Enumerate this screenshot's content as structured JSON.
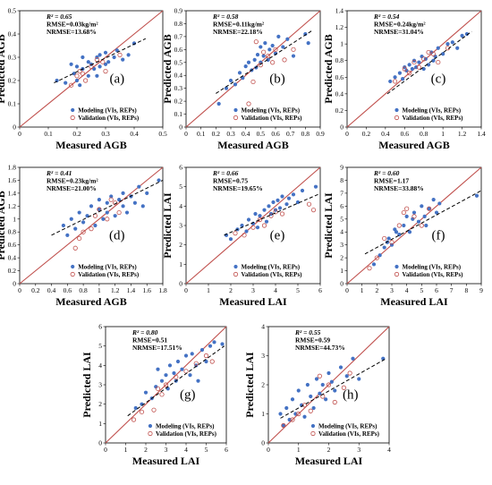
{
  "colors": {
    "modeling": "#4472c4",
    "validation": "#c0504d",
    "one_to_one": "#c0504d",
    "fit": "#000000"
  },
  "chart_data": [
    {
      "type": "scatter",
      "label": "(a)",
      "xlabel": "Measured AGB",
      "ylabel": "Predicted AGB",
      "xlim": [
        0,
        0.5
      ],
      "ylim": [
        0,
        0.5
      ],
      "xticks": [
        "0",
        "0.1",
        "0.2",
        "0.3",
        "0.4",
        "0.5"
      ],
      "yticks": [
        "0",
        "0.1",
        "0.2",
        "0.3",
        "0.4",
        "0.5"
      ],
      "stats": [
        "R² = 0.65",
        "RMSE=0.03kg/m²",
        "NRMSE=13.68%"
      ],
      "legend": [
        "Modeling (VIs, REPs)",
        "Validation (VIs, REPs)"
      ],
      "series": [
        {
          "name": "Modeling (VIs, REPs)",
          "x": [
            0.13,
            0.16,
            0.18,
            0.2,
            0.2,
            0.22,
            0.22,
            0.24,
            0.24,
            0.25,
            0.26,
            0.27,
            0.27,
            0.28,
            0.28,
            0.3,
            0.3,
            0.31,
            0.33,
            0.34,
            0.36,
            0.38,
            0.4,
            0.21,
            0.19
          ],
          "y": [
            0.2,
            0.19,
            0.27,
            0.2,
            0.26,
            0.25,
            0.3,
            0.22,
            0.28,
            0.27,
            0.25,
            0.3,
            0.22,
            0.31,
            0.26,
            0.27,
            0.32,
            0.28,
            0.3,
            0.33,
            0.29,
            0.31,
            0.36,
            0.18,
            0.23
          ]
        },
        {
          "name": "Validation (VIs, REPs)",
          "x": [
            0.18,
            0.2,
            0.22,
            0.25,
            0.27,
            0.29,
            0.3,
            0.35,
            0.23,
            0.21
          ],
          "y": [
            0.18,
            0.22,
            0.23,
            0.26,
            0.29,
            0.28,
            0.24,
            0.31,
            0.2,
            0.24
          ]
        }
      ],
      "fit": [
        [
          0.12,
          0.19
        ],
        [
          0.44,
          0.38
        ]
      ]
    },
    {
      "type": "scatter",
      "label": "(b)",
      "xlabel": "Measured AGB",
      "ylabel": "Predicted AGB",
      "xlim": [
        0,
        0.9
      ],
      "ylim": [
        0,
        0.9
      ],
      "xticks": [
        "0",
        "0.1",
        "0.2",
        "0.3",
        "0.4",
        "0.5",
        "0.6",
        "0.7",
        "0.8",
        "0.9"
      ],
      "yticks": [
        "0",
        "0.1",
        "0.2",
        "0.3",
        "0.4",
        "0.5",
        "0.6",
        "0.7",
        "0.8",
        "0.9"
      ],
      "stats": [
        "R² = 0.58",
        "RMSE=0.11kg/m²",
        "NRMSE=22.18%"
      ],
      "legend": [
        "Modeling (VIs, REPs)",
        "Validation (VIs, REPs)"
      ],
      "series": [
        {
          "name": "Modeling (VIs, REPs)",
          "x": [
            0.22,
            0.27,
            0.3,
            0.33,
            0.36,
            0.38,
            0.4,
            0.42,
            0.44,
            0.46,
            0.47,
            0.48,
            0.5,
            0.5,
            0.52,
            0.53,
            0.55,
            0.56,
            0.58,
            0.6,
            0.62,
            0.65,
            0.68,
            0.72,
            0.8,
            0.82
          ],
          "y": [
            0.18,
            0.3,
            0.36,
            0.33,
            0.42,
            0.38,
            0.47,
            0.5,
            0.44,
            0.52,
            0.46,
            0.56,
            0.5,
            0.62,
            0.55,
            0.65,
            0.52,
            0.6,
            0.63,
            0.57,
            0.7,
            0.62,
            0.68,
            0.55,
            0.72,
            0.65
          ]
        },
        {
          "name": "Validation (VIs, REPs)",
          "x": [
            0.42,
            0.45,
            0.47,
            0.5,
            0.52,
            0.55,
            0.58,
            0.6,
            0.66,
            0.72
          ],
          "y": [
            0.18,
            0.35,
            0.66,
            0.48,
            0.58,
            0.55,
            0.5,
            0.6,
            0.52,
            0.6
          ]
        }
      ],
      "fit": [
        [
          0.2,
          0.26
        ],
        [
          0.85,
          0.75
        ]
      ]
    },
    {
      "type": "scatter",
      "label": "(c)",
      "xlabel": "Measured AGB",
      "ylabel": "Predicted AGB",
      "xlim": [
        0,
        1.4
      ],
      "ylim": [
        0,
        1.4
      ],
      "xticks": [
        "0",
        "0.2",
        "0.4",
        "0.6",
        "0.8",
        "1",
        "1.2",
        "1.4"
      ],
      "yticks": [
        "0",
        "0.2",
        "0.4",
        "0.6",
        "0.8",
        "1",
        "1.2",
        "1.4"
      ],
      "stats": [
        "R² = 0.54",
        "RMSE=0.24kg/m²",
        "NRMSE=31.04%"
      ],
      "legend": [
        "Modeling (VIs, REPs)",
        "Validation (VIs, REPs)"
      ],
      "series": [
        {
          "name": "Modeling (VIs, REPs)",
          "x": [
            0.45,
            0.5,
            0.55,
            0.58,
            0.6,
            0.62,
            0.65,
            0.68,
            0.7,
            0.72,
            0.75,
            0.78,
            0.8,
            0.82,
            0.85,
            0.88,
            0.9,
            0.92,
            0.95,
            1.0,
            1.05,
            1.1,
            1.15,
            1.2,
            1.25
          ],
          "y": [
            0.55,
            0.6,
            0.65,
            0.58,
            0.72,
            0.68,
            0.75,
            0.7,
            0.8,
            0.72,
            0.78,
            0.85,
            0.7,
            0.82,
            0.75,
            0.9,
            0.8,
            0.85,
            0.95,
            0.88,
            1.0,
            1.02,
            0.95,
            1.1,
            1.12
          ]
        },
        {
          "name": "Validation (VIs, REPs)",
          "x": [
            0.5,
            0.6,
            0.65,
            0.7,
            0.75,
            0.8,
            0.85,
            0.9,
            0.95,
            1.05
          ],
          "y": [
            0.55,
            0.7,
            0.65,
            0.78,
            0.72,
            0.82,
            0.9,
            0.88,
            0.78,
            0.95
          ]
        }
      ],
      "fit": [
        [
          0.42,
          0.4
        ],
        [
          1.3,
          1.15
        ]
      ]
    },
    {
      "type": "scatter",
      "label": "(d)",
      "xlabel": "Measured AGB",
      "ylabel": "Predicted AGB",
      "xlim": [
        0,
        1.8
      ],
      "ylim": [
        0,
        1.8
      ],
      "xticks": [
        "0",
        "0.2",
        "0.4",
        "0.6",
        "0.8",
        "1",
        "1.2",
        "1.4",
        "1.6",
        "1.8"
      ],
      "yticks": [
        "0",
        "0.2",
        "0.4",
        "0.6",
        "0.8",
        "1",
        "1.2",
        "1.4",
        "1.6",
        "1.8"
      ],
      "stats": [
        "R² = 0.41",
        "RMSE=0.23kg/m²",
        "NRMSE=21.00%"
      ],
      "legend": [
        "Modeling (VIs, REPs)",
        "Validation (VIs, REPs)"
      ],
      "series": [
        {
          "name": "Modeling (VIs, REPs)",
          "x": [
            0.55,
            0.6,
            0.65,
            0.7,
            0.75,
            0.8,
            0.85,
            0.9,
            0.95,
            1.0,
            1.0,
            1.05,
            1.1,
            1.1,
            1.15,
            1.2,
            1.25,
            1.3,
            1.3,
            1.35,
            1.4,
            1.45,
            1.5,
            1.55,
            1.6,
            1.75
          ],
          "y": [
            0.9,
            0.75,
            1.0,
            0.85,
            1.1,
            0.95,
            1.05,
            1.2,
            0.9,
            1.15,
            1.3,
            1.0,
            1.25,
            1.1,
            1.35,
            1.05,
            1.3,
            1.2,
            1.4,
            1.1,
            1.35,
            1.25,
            1.5,
            1.2,
            1.4,
            1.6
          ]
        },
        {
          "name": "Validation (VIs, REPs)",
          "x": [
            0.7,
            0.75,
            0.8,
            0.9,
            0.95,
            1.0,
            1.1,
            1.15,
            1.2,
            1.25
          ],
          "y": [
            0.55,
            0.7,
            0.8,
            0.85,
            1.05,
            1.15,
            1.0,
            1.3,
            1.25,
            1.1
          ]
        }
      ],
      "fit": [
        [
          0.4,
          0.75
        ],
        [
          1.8,
          1.6
        ]
      ]
    },
    {
      "type": "scatter",
      "label": "(e)",
      "xlabel": "Measured LAI",
      "ylabel": "Predicted LAI",
      "xlim": [
        0,
        6
      ],
      "ylim": [
        0,
        6
      ],
      "xticks": [
        "0",
        "1",
        "2",
        "3",
        "4",
        "5",
        "6"
      ],
      "yticks": [
        "0",
        "1",
        "2",
        "3",
        "4",
        "5",
        "6"
      ],
      "stats": [
        "R² = 0.66",
        "RMSE=0.75",
        "NRMSE=19.65%"
      ],
      "legend": [
        "Modeling (VIs, REPs)",
        "Validation (VIs, REPs)"
      ],
      "series": [
        {
          "name": "Modeling (VIs, REPs)",
          "x": [
            1.8,
            2.0,
            2.3,
            2.5,
            2.7,
            2.8,
            3.0,
            3.1,
            3.2,
            3.3,
            3.5,
            3.6,
            3.7,
            3.8,
            3.9,
            4.0,
            4.1,
            4.2,
            4.3,
            4.5,
            4.6,
            4.8,
            5.0,
            5.2,
            5.8
          ],
          "y": [
            2.5,
            2.3,
            2.8,
            3.0,
            2.7,
            3.3,
            3.1,
            3.6,
            2.9,
            3.5,
            3.8,
            3.2,
            4.0,
            3.6,
            4.2,
            3.8,
            4.3,
            3.9,
            4.5,
            4.1,
            4.4,
            4.6,
            4.2,
            4.8,
            5.0
          ]
        },
        {
          "name": "Validation (VIs, REPs)",
          "x": [
            2.2,
            2.6,
            3.0,
            3.3,
            3.5,
            3.8,
            4.0,
            4.3,
            5.5,
            5.7
          ],
          "y": [
            2.6,
            2.5,
            2.9,
            3.3,
            3.0,
            3.5,
            3.7,
            3.6,
            4.1,
            3.8
          ]
        }
      ],
      "fit": [
        [
          1.7,
          2.5
        ],
        [
          5.9,
          4.6
        ]
      ]
    },
    {
      "type": "scatter",
      "label": "(f)",
      "xlabel": "Measured LAI",
      "ylabel": "Predicted LAI",
      "xlim": [
        0,
        9
      ],
      "ylim": [
        0,
        9
      ],
      "xticks": [
        "0",
        "1",
        "2",
        "3",
        "4",
        "5",
        "6",
        "7",
        "8",
        "9"
      ],
      "yticks": [
        "0",
        "1",
        "2",
        "3",
        "4",
        "5",
        "6",
        "7",
        "8",
        "9"
      ],
      "stats": [
        "R² = 0.60",
        "RMSE=1.17",
        "NRMSE=33.88%"
      ],
      "legend": [
        "Modeling (VIs, REPs)",
        "Validation (VIs, REPs)"
      ],
      "series": [
        {
          "name": "Modeling (VIs, REPs)",
          "x": [
            1.8,
            2.2,
            2.5,
            2.8,
            3.0,
            3.2,
            3.5,
            3.8,
            4.0,
            4.2,
            4.5,
            4.8,
            5.0,
            5.2,
            5.5,
            5.8,
            6.0,
            6.2,
            3.3,
            4.4,
            2.7,
            5.3,
            8.7
          ],
          "y": [
            1.5,
            2.2,
            2.8,
            3.5,
            3.0,
            4.2,
            3.8,
            4.5,
            5.2,
            4.0,
            5.5,
            4.8,
            6.0,
            5.2,
            5.8,
            6.5,
            5.5,
            6.2,
            4.0,
            5.0,
            3.2,
            4.5,
            6.8
          ]
        },
        {
          "name": "Validation (VIs, REPs)",
          "x": [
            1.5,
            2.0,
            2.5,
            3.0,
            3.5,
            4.0,
            4.5,
            5.0,
            5.5,
            3.8
          ],
          "y": [
            1.2,
            2.0,
            3.5,
            3.2,
            4.5,
            5.8,
            5.2,
            4.5,
            5.8,
            5.5
          ]
        }
      ],
      "fit": [
        [
          1.2,
          2.3
        ],
        [
          9,
          7.2
        ]
      ]
    },
    {
      "type": "scatter",
      "label": "(g)",
      "xlabel": "Measured LAI",
      "ylabel": "Predicted LAI",
      "xlim": [
        0,
        6
      ],
      "ylim": [
        0,
        6
      ],
      "xticks": [
        "0",
        "1",
        "2",
        "3",
        "4",
        "5",
        "6"
      ],
      "yticks": [
        "0",
        "1",
        "2",
        "3",
        "4",
        "5",
        "6"
      ],
      "stats": [
        "R² = 0.80",
        "RMSE=0.51",
        "NRMSE=17.51%"
      ],
      "legend": [
        "Modeling (VIs, REPs)",
        "Validation (VIs, REPs)"
      ],
      "series": [
        {
          "name": "Modeling (VIs, REPs)",
          "x": [
            1.5,
            1.8,
            2.0,
            2.3,
            2.5,
            2.6,
            2.8,
            3.0,
            3.1,
            3.2,
            3.4,
            3.5,
            3.6,
            3.8,
            4.0,
            4.2,
            4.3,
            4.5,
            4.6,
            4.8,
            5.0,
            5.2,
            5.4,
            5.8
          ],
          "y": [
            1.8,
            2.0,
            2.6,
            2.3,
            2.9,
            3.8,
            3.2,
            3.5,
            2.8,
            4.0,
            3.6,
            3.2,
            4.2,
            3.8,
            4.5,
            3.5,
            4.6,
            4.0,
            3.2,
            4.8,
            4.2,
            5.0,
            5.2,
            5.1
          ]
        },
        {
          "name": "Validation (VIs, REPs)",
          "x": [
            1.4,
            1.8,
            2.4,
            2.6,
            2.8,
            3.0,
            3.5,
            4.0,
            4.5,
            5.0,
            5.3
          ],
          "y": [
            1.2,
            1.6,
            1.7,
            2.8,
            2.5,
            3.0,
            3.4,
            3.7,
            4.1,
            4.5,
            4.2
          ]
        }
      ],
      "fit": [
        [
          1.1,
          1.4
        ],
        [
          5.9,
          5.0
        ]
      ]
    },
    {
      "type": "scatter",
      "label": "(h)",
      "xlabel": "Measured LAI",
      "ylabel": "Predicted LAI",
      "xlim": [
        0,
        4
      ],
      "ylim": [
        0,
        4
      ],
      "xticks": [
        "0",
        "1",
        "2",
        "3",
        "4"
      ],
      "yticks": [
        "0",
        "1",
        "2",
        "3",
        "4"
      ],
      "stats": [
        "R² = 0.55",
        "RMSE=0.59",
        "NRMSE=44.73%"
      ],
      "legend": [
        "Modeling (VIs, REPs)",
        "Validation (VIs, REPs)"
      ],
      "series": [
        {
          "name": "Modeling (VIs, REPs)",
          "x": [
            0.4,
            0.5,
            0.6,
            0.7,
            0.8,
            0.9,
            1.0,
            1.1,
            1.2,
            1.3,
            1.4,
            1.5,
            1.6,
            1.7,
            1.8,
            1.9,
            2.0,
            2.1,
            2.2,
            2.4,
            2.6,
            2.8,
            3.0,
            3.8
          ],
          "y": [
            1.0,
            0.6,
            1.2,
            0.8,
            1.5,
            1.0,
            1.8,
            1.3,
            0.9,
            2.0,
            1.6,
            1.2,
            2.2,
            1.7,
            2.0,
            1.5,
            2.4,
            2.1,
            1.8,
            2.6,
            2.3,
            2.9,
            2.2,
            2.9
          ]
        },
        {
          "name": "Validation (VIs, REPs)",
          "x": [
            0.5,
            0.8,
            1.0,
            1.2,
            1.4,
            1.7,
            1.8,
            2.0,
            2.2,
            2.5,
            2.7
          ],
          "y": [
            0.6,
            0.8,
            1.0,
            1.3,
            1.1,
            2.3,
            1.6,
            2.0,
            1.4,
            1.9,
            2.4
          ]
        }
      ],
      "fit": [
        [
          0.4,
          0.85
        ],
        [
          3.9,
          2.9
        ]
      ]
    }
  ]
}
